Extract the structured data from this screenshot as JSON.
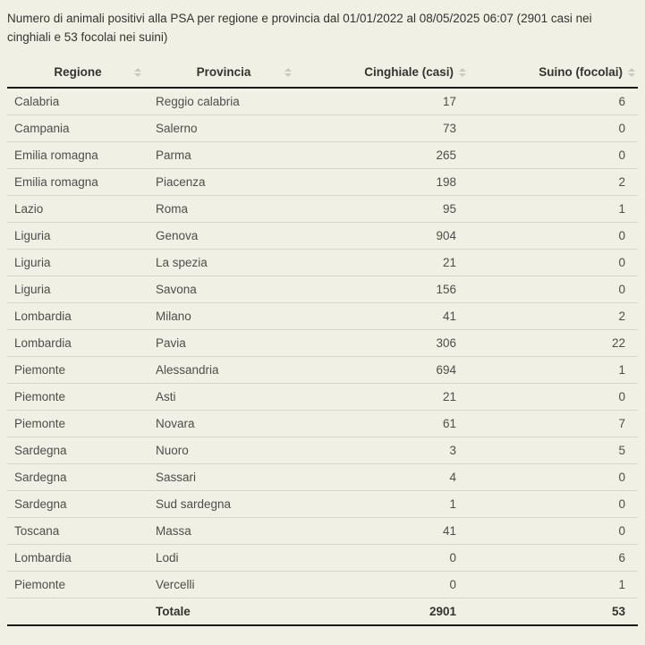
{
  "title": "Numero di animali positivi alla PSA per regione e provincia dal 01/01/2022 al 08/05/2025 06:07 (2901 casi nei cinghiali e 53 focolai nei suini)",
  "table": {
    "columns": [
      {
        "key": "regione",
        "label": "Regione",
        "numeric": false,
        "sort_icon": "sort-both-icon"
      },
      {
        "key": "provincia",
        "label": "Provincia",
        "numeric": false,
        "sort_icon": "sort-both-icon"
      },
      {
        "key": "cinghiale",
        "label": "Cinghiale (casi)",
        "numeric": true,
        "sort_icon": "sort-both-icon"
      },
      {
        "key": "suino",
        "label": "Suino (focolai)",
        "numeric": true,
        "sort_icon": "sort-both-icon"
      }
    ],
    "rows": [
      [
        "Calabria",
        "Reggio calabria",
        "17",
        "6"
      ],
      [
        "Campania",
        "Salerno",
        "73",
        "0"
      ],
      [
        "Emilia romagna",
        "Parma",
        "265",
        "0"
      ],
      [
        "Emilia romagna",
        "Piacenza",
        "198",
        "2"
      ],
      [
        "Lazio",
        "Roma",
        "95",
        "1"
      ],
      [
        "Liguria",
        "Genova",
        "904",
        "0"
      ],
      [
        "Liguria",
        "La spezia",
        "21",
        "0"
      ],
      [
        "Liguria",
        "Savona",
        "156",
        "0"
      ],
      [
        "Lombardia",
        "Milano",
        "41",
        "2"
      ],
      [
        "Lombardia",
        "Pavia",
        "306",
        "22"
      ],
      [
        "Piemonte",
        "Alessandria",
        "694",
        "1"
      ],
      [
        "Piemonte",
        "Asti",
        "21",
        "0"
      ],
      [
        "Piemonte",
        "Novara",
        "61",
        "7"
      ],
      [
        "Sardegna",
        "Nuoro",
        "3",
        "5"
      ],
      [
        "Sardegna",
        "Sassari",
        "4",
        "0"
      ],
      [
        "Sardegna",
        "Sud sardegna",
        "1",
        "0"
      ],
      [
        "Toscana",
        "Massa",
        "41",
        "0"
      ],
      [
        "Lombardia",
        "Lodi",
        "0",
        "6"
      ],
      [
        "Piemonte",
        "Vercelli",
        "0",
        "1"
      ]
    ],
    "total": {
      "label": "Totale",
      "cinghiale": "2901",
      "suino": "53"
    }
  },
  "colors": {
    "page_background": "#f0f1e4",
    "heavy_border": "#1a1a1a",
    "row_divider": "#d6d6ca",
    "header_text": "#333333",
    "cell_text": "#4d4d4d",
    "sort_icon": "#c9c9c0"
  }
}
